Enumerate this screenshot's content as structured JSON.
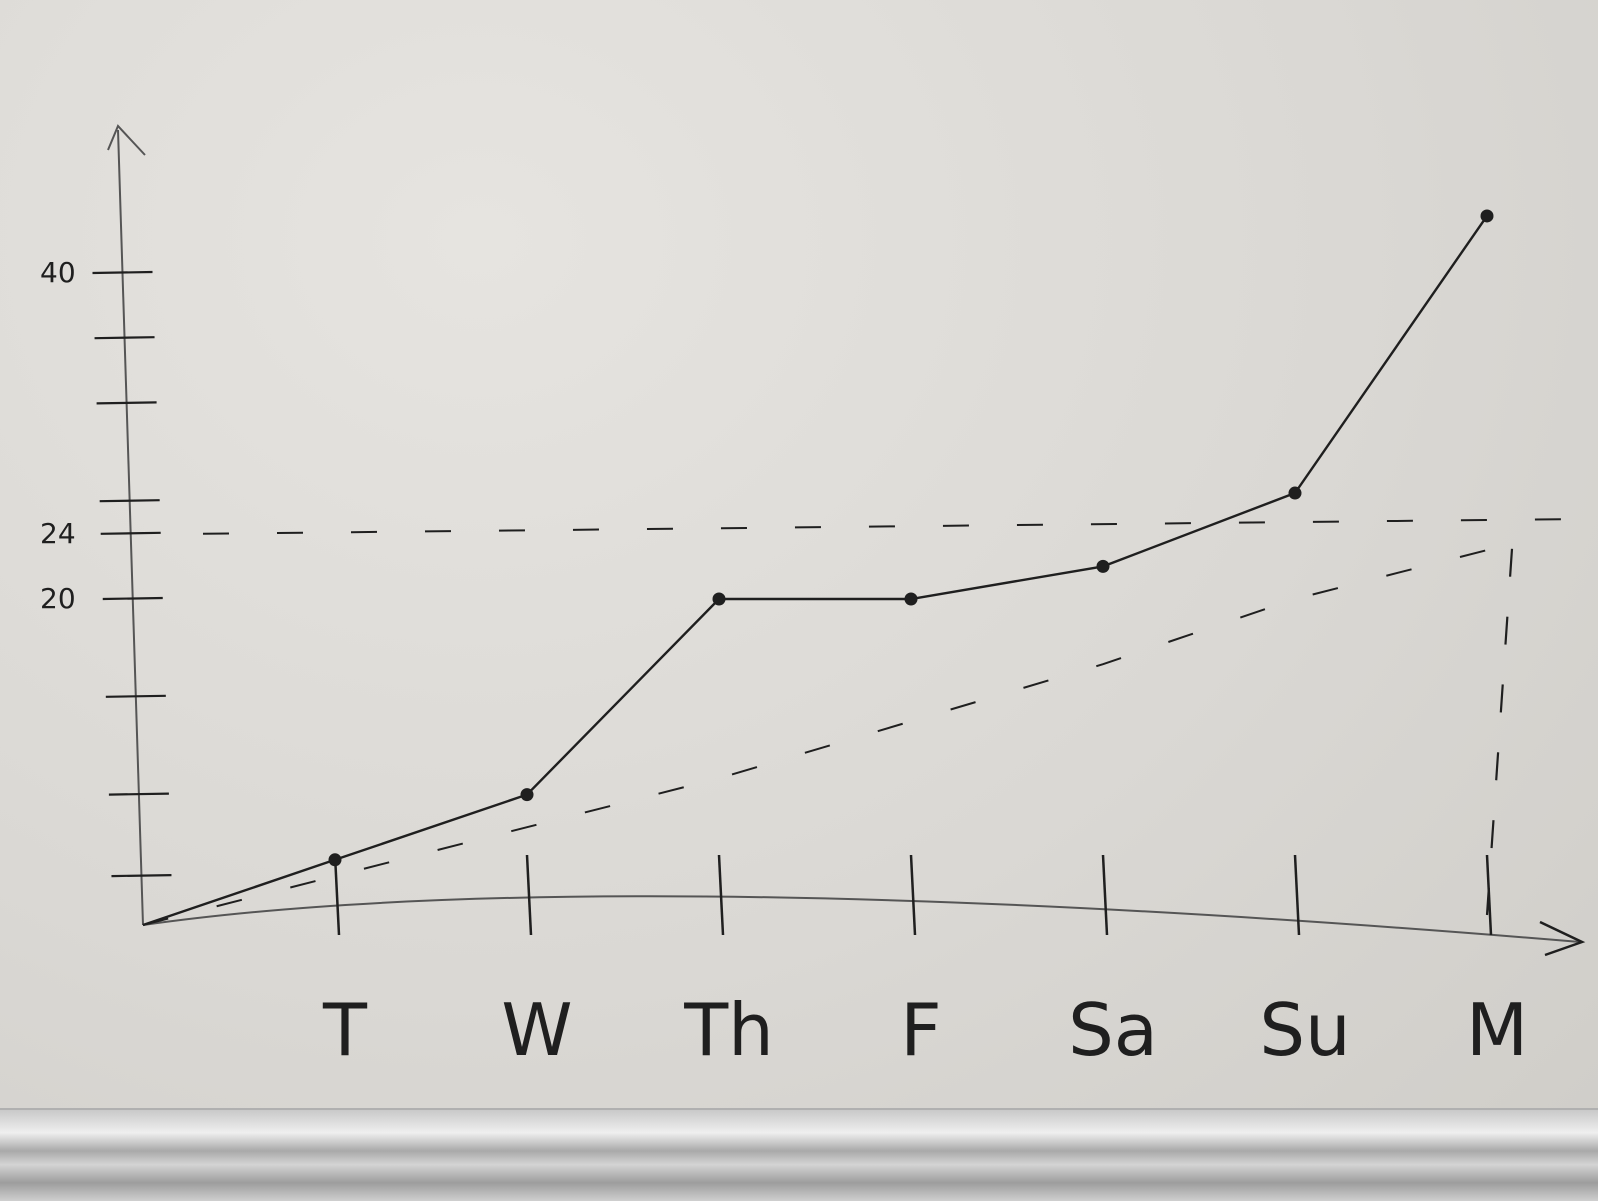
{
  "chart_data": {
    "type": "line",
    "title": "",
    "xlabel": "",
    "ylabel": "",
    "categories": [
      "",
      "T",
      "W",
      "Th",
      "F",
      "Sa",
      "Su",
      "M"
    ],
    "y_tick_labels": [
      "40",
      "24",
      "20"
    ],
    "ylim": [
      0,
      46
    ],
    "series": [
      {
        "values": [
          0,
          4,
          8,
          20,
          20,
          22,
          26.5,
          43.5
        ],
        "style": "solid",
        "markers": true
      },
      {
        "values": [
          0,
          3,
          6,
          9,
          12.5,
          16,
          20,
          23
        ],
        "style": "dashed",
        "markers": false
      }
    ],
    "reference_lines": [
      {
        "axis": "y",
        "value": 24,
        "style": "dashed"
      },
      {
        "axis": "x",
        "category": "M",
        "style": "dashed"
      }
    ],
    "grid": false,
    "colors": {
      "ink": "#1f1f1f",
      "board": "#dad8d4"
    }
  }
}
